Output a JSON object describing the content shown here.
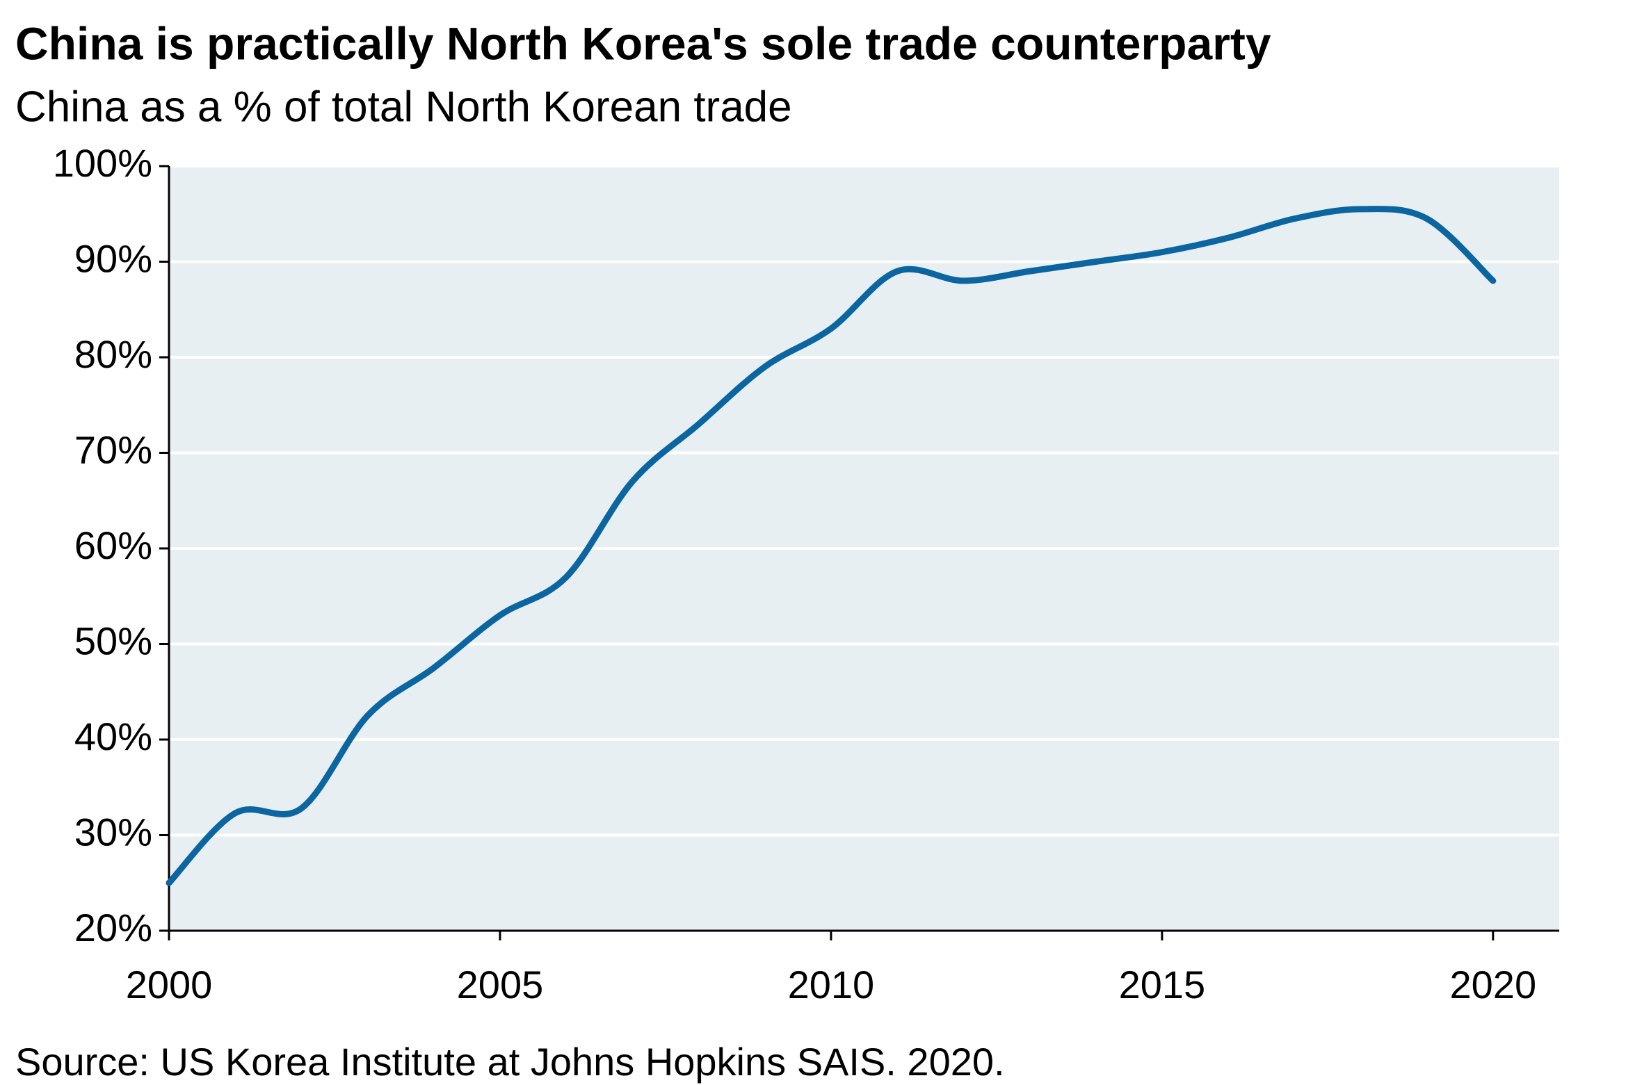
{
  "chart_data": {
    "type": "line",
    "title": "China is practically North Korea's sole trade counterparty",
    "subtitle": "China as a % of total North Korean trade",
    "source": "Source: US Korea Institute at Johns Hopkins SAIS. 2020.",
    "x": [
      2000,
      2001,
      2002,
      2003,
      2004,
      2005,
      2006,
      2007,
      2008,
      2009,
      2010,
      2011,
      2012,
      2013,
      2014,
      2015,
      2016,
      2017,
      2018,
      2019,
      2020
    ],
    "values": [
      25,
      32.3,
      32.8,
      42.5,
      47.5,
      53,
      57,
      67,
      73,
      79,
      83,
      89,
      88,
      89,
      90,
      91,
      92.5,
      94.5,
      95.5,
      94.5,
      88
    ],
    "color": "#0b65a0",
    "plot_background": "#e7eff2",
    "xlim": [
      2000,
      2021
    ],
    "xticks": [
      2000,
      2005,
      2010,
      2015,
      2020
    ],
    "ylim": [
      20,
      100
    ],
    "yticks": [
      {
        "value": 20,
        "label": "20%"
      },
      {
        "value": 30,
        "label": "30%"
      },
      {
        "value": 40,
        "label": "40%"
      },
      {
        "value": 50,
        "label": "50%"
      },
      {
        "value": 60,
        "label": "60%"
      },
      {
        "value": 70,
        "label": "70%"
      },
      {
        "value": 80,
        "label": "80%"
      },
      {
        "value": 90,
        "label": "90%"
      },
      {
        "value": 100,
        "label": "100%"
      }
    ],
    "grid": true
  }
}
